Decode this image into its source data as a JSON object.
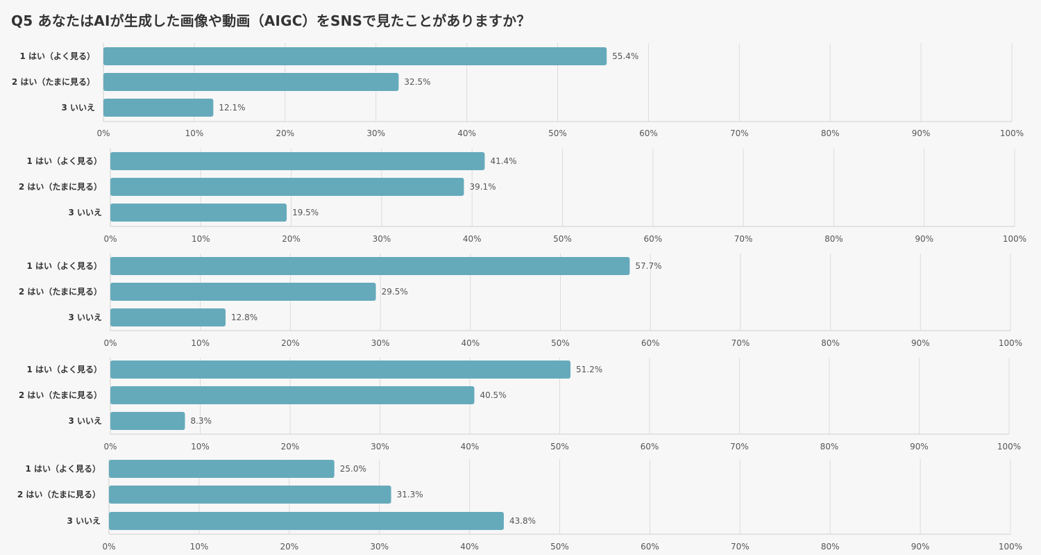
{
  "page_title": "Q5 あなたはAIが生成した画像や動画（AIGC）をSNSで見たことがありますか？",
  "colors": {
    "bar": "#65aabb",
    "background": "#f7f7f7",
    "grid": "#dcdcdc"
  },
  "chart_data": [
    {
      "type": "bar",
      "orientation": "horizontal",
      "xlim": [
        0,
        100
      ],
      "categories": [
        "1 はい（よく見る）",
        "2 はい（たまに見る）",
        "3 いいえ"
      ],
      "values": [
        55.4,
        32.5,
        12.1
      ],
      "value_labels": [
        "55.4%",
        "32.5%",
        "12.1%"
      ],
      "ticks": [
        "0%",
        "10%",
        "20%",
        "30%",
        "40%",
        "50%",
        "60%",
        "70%",
        "80%",
        "90%",
        "100%"
      ]
    },
    {
      "type": "bar",
      "orientation": "horizontal",
      "xlim": [
        0,
        100
      ],
      "categories": [
        "1 はい（よく見る）",
        "2 はい（たまに見る）",
        "3 いいえ"
      ],
      "values": [
        41.4,
        39.1,
        19.5
      ],
      "value_labels": [
        "41.4%",
        "39.1%",
        "19.5%"
      ],
      "ticks": [
        "0%",
        "10%",
        "20%",
        "30%",
        "40%",
        "50%",
        "60%",
        "70%",
        "80%",
        "90%",
        "100%"
      ]
    },
    {
      "type": "bar",
      "orientation": "horizontal",
      "xlim": [
        0,
        100
      ],
      "categories": [
        "1 はい（よく見る）",
        "2 はい（たまに見る）",
        "3 いいえ"
      ],
      "values": [
        57.7,
        29.5,
        12.8
      ],
      "value_labels": [
        "57.7%",
        "29.5%",
        "12.8%"
      ],
      "ticks": [
        "0%",
        "10%",
        "20%",
        "30%",
        "40%",
        "50%",
        "60%",
        "70%",
        "80%",
        "90%",
        "100%"
      ]
    },
    {
      "type": "bar",
      "orientation": "horizontal",
      "xlim": [
        0,
        100
      ],
      "categories": [
        "1 はい（よく見る）",
        "2 はい（たまに見る）",
        "3 いいえ"
      ],
      "values": [
        51.2,
        40.5,
        8.3
      ],
      "value_labels": [
        "51.2%",
        "40.5%",
        "8.3%"
      ],
      "ticks": [
        "0%",
        "10%",
        "20%",
        "30%",
        "40%",
        "50%",
        "60%",
        "70%",
        "80%",
        "90%",
        "100%"
      ]
    },
    {
      "type": "bar",
      "orientation": "horizontal",
      "xlim": [
        0,
        100
      ],
      "categories": [
        "1 はい（よく見る）",
        "2 はい（たまに見る）",
        "3 いいえ"
      ],
      "values": [
        25.0,
        31.3,
        43.8
      ],
      "value_labels": [
        "25.0%",
        "31.3%",
        "43.8%"
      ],
      "ticks": [
        "0%",
        "10%",
        "20%",
        "30%",
        "40%",
        "50%",
        "60%",
        "70%",
        "80%",
        "90%",
        "100%"
      ]
    }
  ]
}
